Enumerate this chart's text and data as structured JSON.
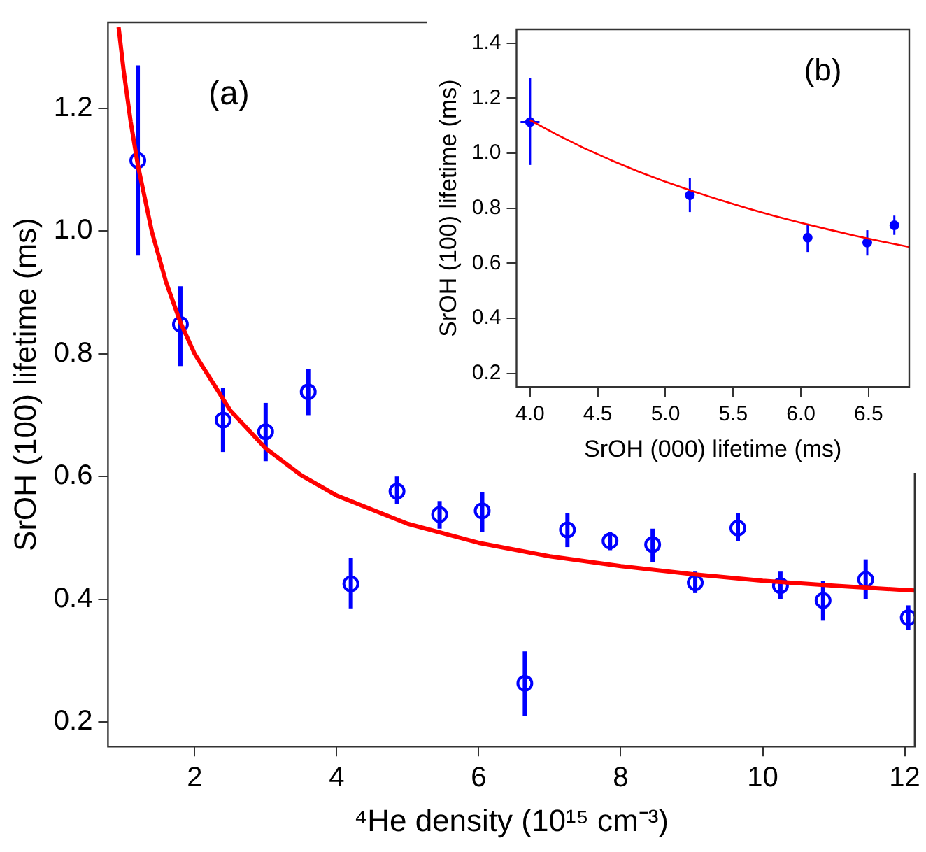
{
  "chart_data": [
    {
      "type": "scatter",
      "xlabel": "⁴He density (10¹⁵ cm⁻³)",
      "ylabel": "SrOH (100) lifetime (ms)",
      "annotations": [
        "(a)"
      ],
      "grid": false,
      "xlim": [
        0.78,
        12.14
      ],
      "xticks": [
        2,
        4,
        6,
        8,
        10,
        12
      ],
      "ylim": [
        0.16,
        1.34
      ],
      "yticks": [
        {
          "value": 0.2,
          "label": "0.2"
        },
        {
          "value": 0.4,
          "label": "0.4"
        },
        {
          "value": 0.6,
          "label": "0.6"
        },
        {
          "value": 0.8,
          "label": "0.8"
        },
        {
          "value": 1.0,
          "label": "1.0"
        },
        {
          "value": 1.2,
          "label": "1.2"
        }
      ],
      "x": [
        1.2,
        1.8,
        2.4,
        3.0,
        3.6,
        4.2,
        4.85,
        5.45,
        6.05,
        6.65,
        7.25,
        7.85,
        8.45,
        9.05,
        9.65,
        10.25,
        10.85,
        11.45,
        12.05
      ],
      "series": [
        {
          "marker": "circle",
          "color": "#0000ff",
          "values": [
            1.115,
            0.848,
            0.692,
            0.673,
            0.738,
            0.425,
            0.576,
            0.538,
            0.544,
            0.263,
            0.513,
            0.495,
            0.489,
            0.427,
            0.516,
            0.422,
            0.398,
            0.432,
            0.37
          ],
          "errors": [
            [
              0.96,
              1.27
            ],
            [
              0.78,
              0.91
            ],
            [
              0.64,
              0.745
            ],
            [
              0.625,
              0.72
            ],
            [
              0.7,
              0.775
            ],
            [
              0.385,
              0.468
            ],
            [
              0.555,
              0.6
            ],
            [
              0.515,
              0.56
            ],
            [
              0.51,
              0.575
            ],
            [
              0.21,
              0.315
            ],
            [
              0.485,
              0.54
            ],
            [
              0.48,
              0.51
            ],
            [
              0.46,
              0.515
            ],
            [
              0.41,
              0.445
            ],
            [
              0.495,
              0.54
            ],
            [
              0.4,
              0.445
            ],
            [
              0.365,
              0.43
            ],
            [
              0.4,
              0.465
            ],
            [
              0.35,
              0.39
            ]
          ]
        },
        {
          "type": "line",
          "marker": "none",
          "color": "#ff0000",
          "x": [
            0.93,
            1.0,
            1.1,
            1.2,
            1.4,
            1.6,
            1.8,
            2.0,
            2.5,
            3.0,
            3.5,
            4.0,
            5.0,
            6.0,
            7.0,
            8.0,
            9.0,
            10.0,
            11.0,
            12.0,
            12.14
          ],
          "values": [
            1.332,
            1.262,
            1.178,
            1.108,
            0.998,
            0.916,
            0.851,
            0.8,
            0.708,
            0.646,
            0.602,
            0.569,
            0.523,
            0.492,
            0.47,
            0.454,
            0.441,
            0.43,
            0.422,
            0.415,
            0.414
          ]
        }
      ]
    },
    {
      "type": "scatter",
      "xlabel": "SrOH (000) lifetime (ms)",
      "ylabel": "SrOH (100) lifetime (ms)",
      "annotations": [
        "(b)"
      ],
      "grid": false,
      "xlim": [
        3.9,
        6.8
      ],
      "xticks": [
        {
          "value": 4.0,
          "label": "4.0"
        },
        {
          "value": 4.5,
          "label": "4.5"
        },
        {
          "value": 5.0,
          "label": "5.0"
        },
        {
          "value": 5.5,
          "label": "5.5"
        },
        {
          "value": 6.0,
          "label": "6.0"
        },
        {
          "value": 6.5,
          "label": "6.5"
        }
      ],
      "ylim": [
        0.15,
        1.45
      ],
      "yticks": [
        {
          "value": 0.2,
          "label": "0.2"
        },
        {
          "value": 0.4,
          "label": "0.4"
        },
        {
          "value": 0.6,
          "label": "0.6"
        },
        {
          "value": 0.8,
          "label": "0.8"
        },
        {
          "value": 1.0,
          "label": "1.0"
        },
        {
          "value": 1.2,
          "label": "1.2"
        },
        {
          "value": 1.4,
          "label": "1.4"
        }
      ],
      "x": [
        4.0,
        5.18,
        6.05,
        6.49,
        6.69
      ],
      "series": [
        {
          "marker": "circle",
          "color": "#0000ff",
          "values": [
            1.113,
            0.847,
            0.693,
            0.675,
            0.738
          ],
          "errors": [
            [
              0.957,
              1.272
            ],
            [
              0.786,
              0.91
            ],
            [
              0.641,
              0.741
            ],
            [
              0.628,
              0.72
            ],
            [
              0.703,
              0.773
            ]
          ],
          "xerrors": [
            0.07,
            0.03,
            0.03,
            0.03,
            0.02
          ]
        },
        {
          "type": "line",
          "marker": "none",
          "color": "#ff0000",
          "x": [
            4.0,
            4.2,
            4.4,
            4.6,
            4.8,
            5.0,
            5.2,
            5.4,
            5.6,
            5.8,
            6.0,
            6.2,
            6.4,
            6.6,
            6.8
          ],
          "values": [
            1.12,
            1.067,
            1.018,
            0.974,
            0.933,
            0.896,
            0.862,
            0.83,
            0.8,
            0.772,
            0.747,
            0.723,
            0.7,
            0.679,
            0.659
          ]
        }
      ]
    }
  ]
}
